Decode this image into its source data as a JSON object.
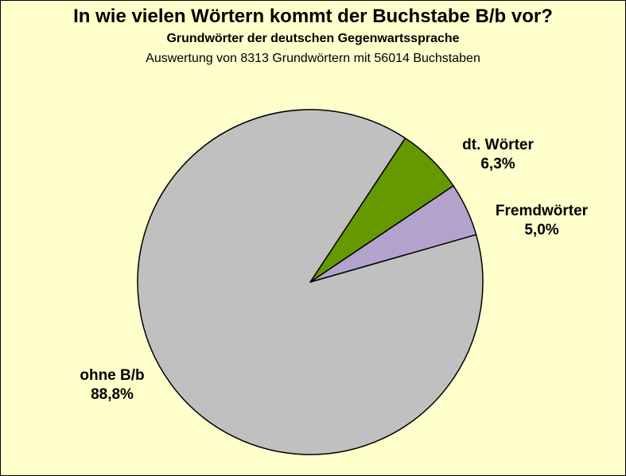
{
  "chart_data": {
    "type": "pie",
    "title": "In wie vielen Wörtern kommt der Buchstabe B/b vor?",
    "subtitle": "Grundwörter der deutschen Gegenwartssprache",
    "note": "Auswertung von 8313 Grundwörtern mit 56014 Buchstaben",
    "slices": [
      {
        "label": "dt. Wörter",
        "value": 6.3,
        "value_label": "6,3%",
        "color": "#669900"
      },
      {
        "label": "Fremdwörter",
        "value": 5.0,
        "value_label": "5,0%",
        "color": "#b3a3cc"
      },
      {
        "label": "ohne B/b",
        "value": 88.8,
        "value_label": "88,8%",
        "color": "#c0c0c0"
      }
    ]
  },
  "colors": {
    "background": "#ffffcc",
    "border": "#000000"
  }
}
